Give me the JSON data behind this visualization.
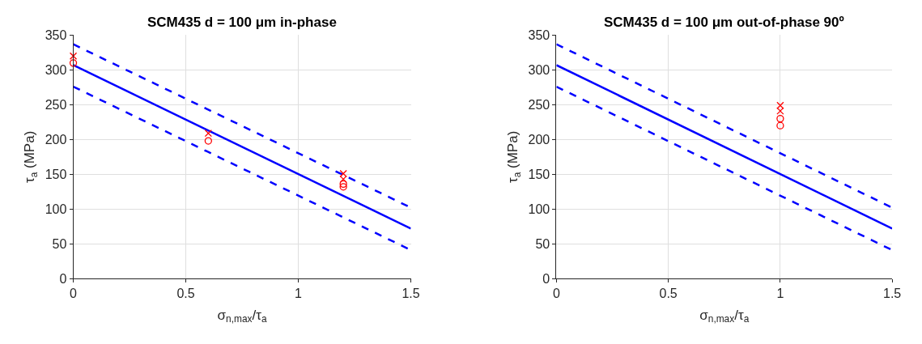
{
  "chart_data": [
    {
      "type": "line",
      "title": "SCM435 d = 100 μm in-phase",
      "xlabel": "σ$_{n,max}$/τ$_{a}$",
      "ylabel": "τ$_{a}$ (MPa)",
      "xlim": [
        0,
        1.5
      ],
      "xticks": [
        0,
        0.5,
        1,
        1.5
      ],
      "ylim": [
        0,
        350
      ],
      "yticks": [
        0,
        50,
        100,
        150,
        200,
        250,
        300,
        350
      ],
      "grid": true,
      "series": [
        {
          "color": "#0000ff",
          "line_style": "solid",
          "marker": "none",
          "x": [
            0,
            1.5
          ],
          "values": [
            307,
            72
          ]
        },
        {
          "color": "#0000ff",
          "line_style": "dashed",
          "marker": "none",
          "x": [
            0,
            1.5
          ],
          "values": [
            337,
            102
          ]
        },
        {
          "color": "#0000ff",
          "line_style": "dashed",
          "marker": "none",
          "x": [
            0,
            1.5
          ],
          "values": [
            276,
            41
          ]
        },
        {
          "type": "scatter",
          "color": "#ff0000",
          "marker": "cross",
          "x": [
            0,
            0.6,
            1.2,
            1.2
          ],
          "values": [
            320,
            209,
            151,
            143
          ]
        },
        {
          "type": "scatter",
          "color": "#ff0000",
          "marker": "circle",
          "x": [
            0,
            0.6,
            1.2,
            1.2
          ],
          "values": [
            310,
            198,
            136,
            132
          ]
        }
      ]
    },
    {
      "type": "line",
      "title": "SCM435 d = 100 μm out-of-phase 90º",
      "xlabel": "σ$_{n,max}$/τ$_{a}$",
      "ylabel": "τ$_{a}$ (MPa)",
      "xlim": [
        0,
        1.5
      ],
      "xticks": [
        0,
        0.5,
        1,
        1.5
      ],
      "ylim": [
        0,
        350
      ],
      "yticks": [
        0,
        50,
        100,
        150,
        200,
        250,
        300,
        350
      ],
      "grid": true,
      "series": [
        {
          "color": "#0000ff",
          "line_style": "solid",
          "marker": "none",
          "x": [
            0,
            1.5
          ],
          "values": [
            307,
            72
          ]
        },
        {
          "color": "#0000ff",
          "line_style": "dashed",
          "marker": "none",
          "x": [
            0,
            1.5
          ],
          "values": [
            337,
            102
          ]
        },
        {
          "color": "#0000ff",
          "line_style": "dashed",
          "marker": "none",
          "x": [
            0,
            1.5
          ],
          "values": [
            276,
            41
          ]
        },
        {
          "type": "scatter",
          "color": "#ff0000",
          "marker": "cross",
          "x": [
            1,
            1
          ],
          "values": [
            249,
            241
          ]
        },
        {
          "type": "scatter",
          "color": "#ff0000",
          "marker": "circle",
          "x": [
            1,
            1
          ],
          "values": [
            230,
            220
          ]
        }
      ]
    }
  ]
}
